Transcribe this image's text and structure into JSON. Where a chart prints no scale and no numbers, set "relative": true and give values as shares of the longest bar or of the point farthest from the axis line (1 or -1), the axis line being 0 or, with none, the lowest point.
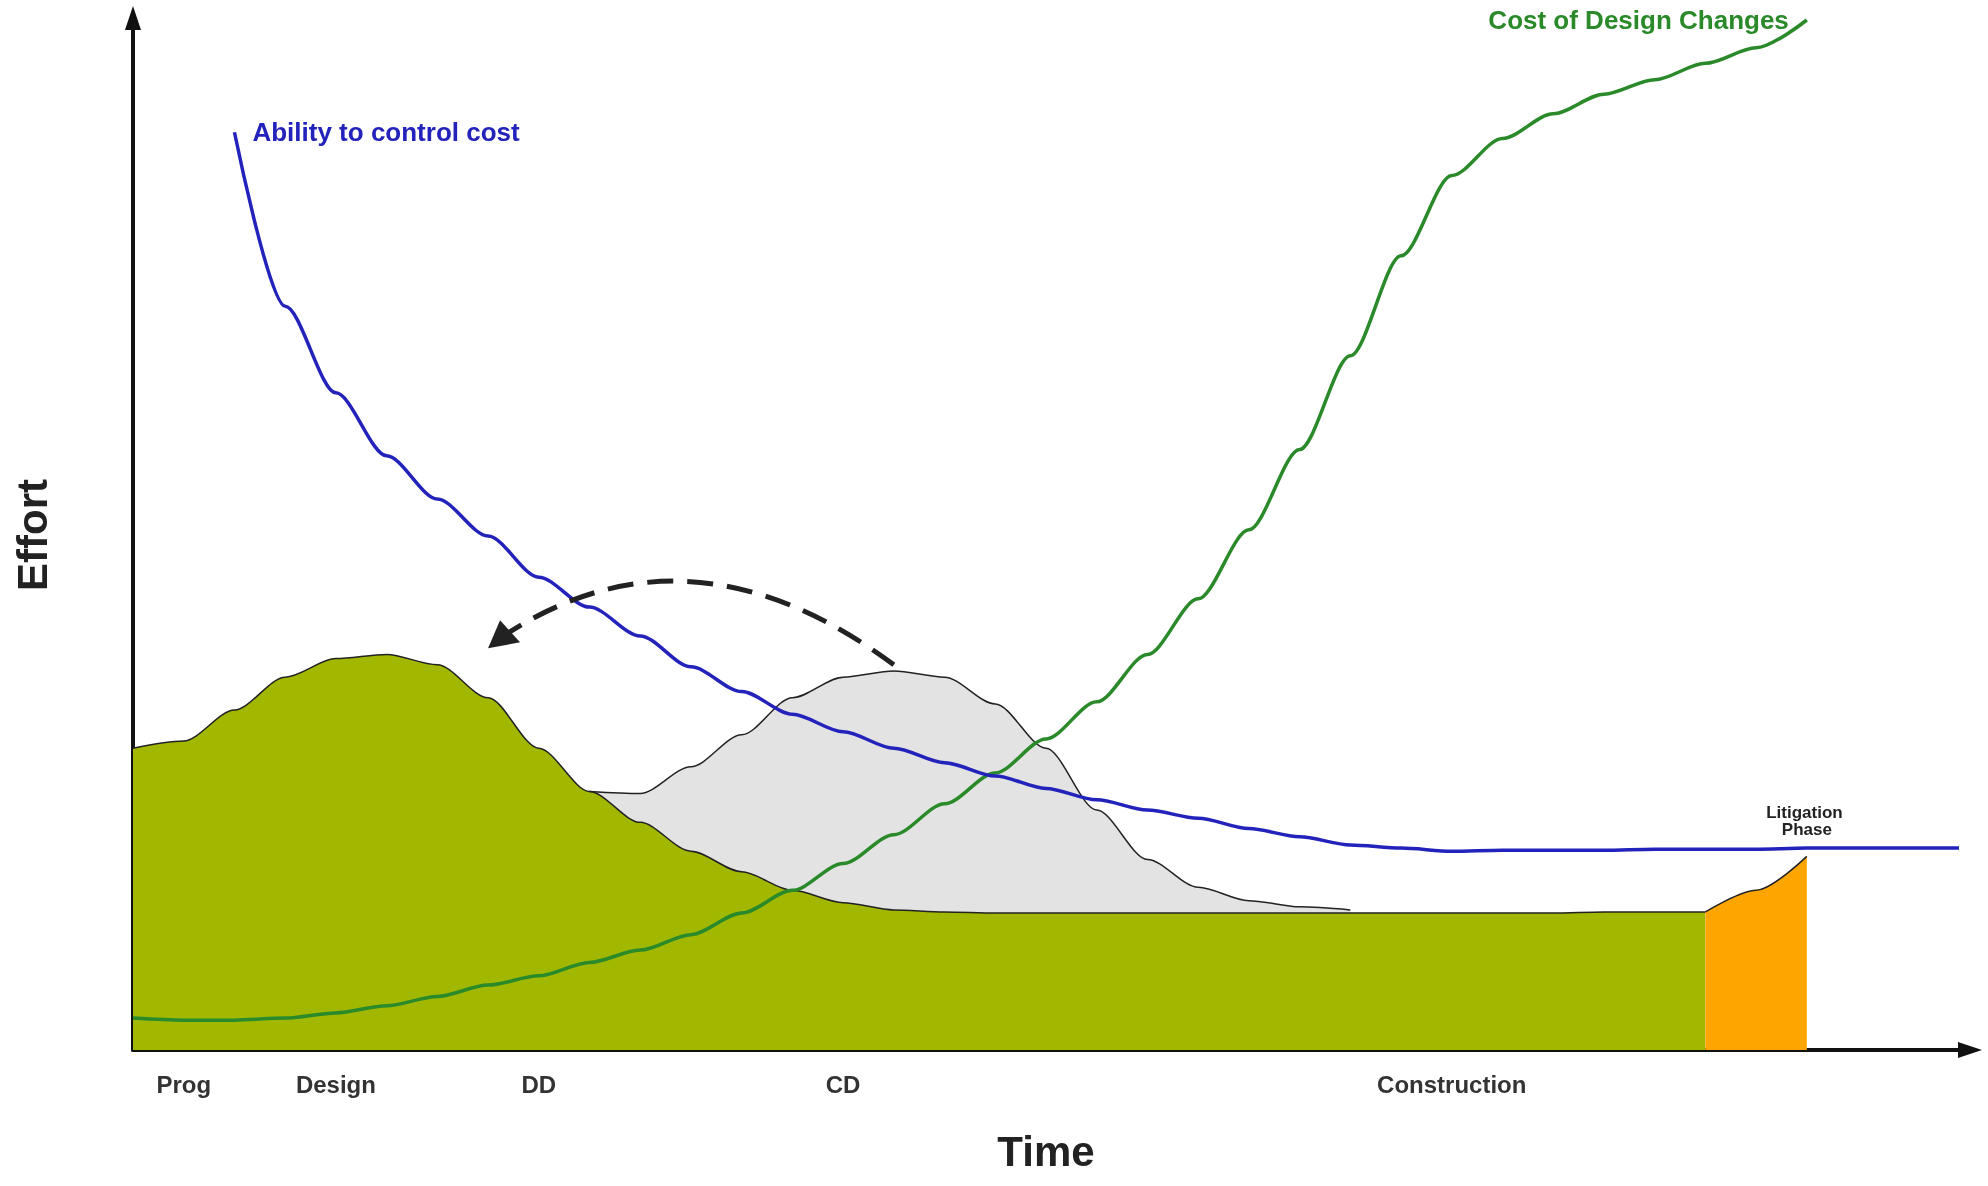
{
  "chart_data": {
    "type": "area",
    "relative": true,
    "xlabel": "Time",
    "ylabel": "Effort",
    "categories": [
      null,
      "Prog",
      null,
      null,
      "Design",
      null,
      null,
      null,
      "DD",
      null,
      null,
      null,
      null,
      null,
      "CD",
      null,
      null,
      null,
      null,
      null,
      null,
      null,
      null,
      null,
      null,
      null,
      "Construction",
      null,
      null,
      null,
      null,
      null,
      null,
      null,
      null,
      null,
      null
    ],
    "series": [
      {
        "color": "#e3e3e3",
        "values": [
          null,
          null,
          null,
          null,
          null,
          null,
          null,
          null,
          null,
          0.251,
          0.249,
          0.275,
          0.306,
          0.342,
          0.362,
          0.368,
          0.362,
          0.336,
          0.293,
          0.233,
          0.185,
          0.158,
          0.145,
          0.139,
          0.136,
          null,
          null,
          null,
          null,
          null,
          null,
          null,
          null,
          null,
          null,
          null,
          null
        ]
      },
      {
        "color": "#a2b800",
        "values": [
          0.293,
          0.3,
          0.33,
          0.362,
          0.38,
          0.384,
          0.374,
          0.342,
          0.293,
          0.251,
          0.221,
          0.193,
          0.173,
          0.155,
          0.143,
          0.136,
          0.134,
          0.133,
          0.133,
          0.133,
          0.133,
          0.133,
          0.133,
          0.133,
          0.133,
          0.133,
          0.133,
          0.133,
          0.133,
          0.134,
          0.134,
          0.134,
          null,
          null,
          null,
          null,
          null
        ]
      },
      {
        "name": "Litigation Phase",
        "color": "#ffa500",
        "values": [
          null,
          null,
          null,
          null,
          null,
          null,
          null,
          null,
          null,
          null,
          null,
          null,
          null,
          null,
          null,
          null,
          null,
          null,
          null,
          null,
          null,
          null,
          null,
          null,
          null,
          null,
          null,
          null,
          null,
          null,
          null,
          0.134,
          0.155,
          0.188,
          null,
          null,
          null
        ]
      },
      {
        "type": "line",
        "name": "Cost of Design Changes",
        "color": "#2a8a2a",
        "values": [
          0.031,
          0.029,
          0.029,
          0.031,
          0.036,
          0.043,
          0.052,
          0.063,
          0.072,
          0.085,
          0.097,
          0.112,
          0.133,
          0.155,
          0.181,
          0.209,
          0.239,
          0.269,
          0.302,
          0.338,
          0.384,
          0.438,
          0.505,
          0.583,
          0.674,
          0.771,
          0.849,
          0.885,
          0.909,
          0.928,
          0.942,
          0.958,
          0.973,
          1,
          null,
          null,
          null
        ]
      },
      {
        "type": "line",
        "name": "Ability to control cost",
        "color": "#2323bb",
        "values": [
          null,
          null,
          0.891,
          0.722,
          0.638,
          0.577,
          0.535,
          0.499,
          0.459,
          0.43,
          0.402,
          0.372,
          0.348,
          0.326,
          0.309,
          0.293,
          0.279,
          0.266,
          0.254,
          0.243,
          0.233,
          0.225,
          0.215,
          0.207,
          0.199,
          0.196,
          0.193,
          0.194,
          0.194,
          0.194,
          0.195,
          0.195,
          0.195,
          0.196,
          0.196,
          0.196,
          0.196
        ]
      }
    ]
  }
}
